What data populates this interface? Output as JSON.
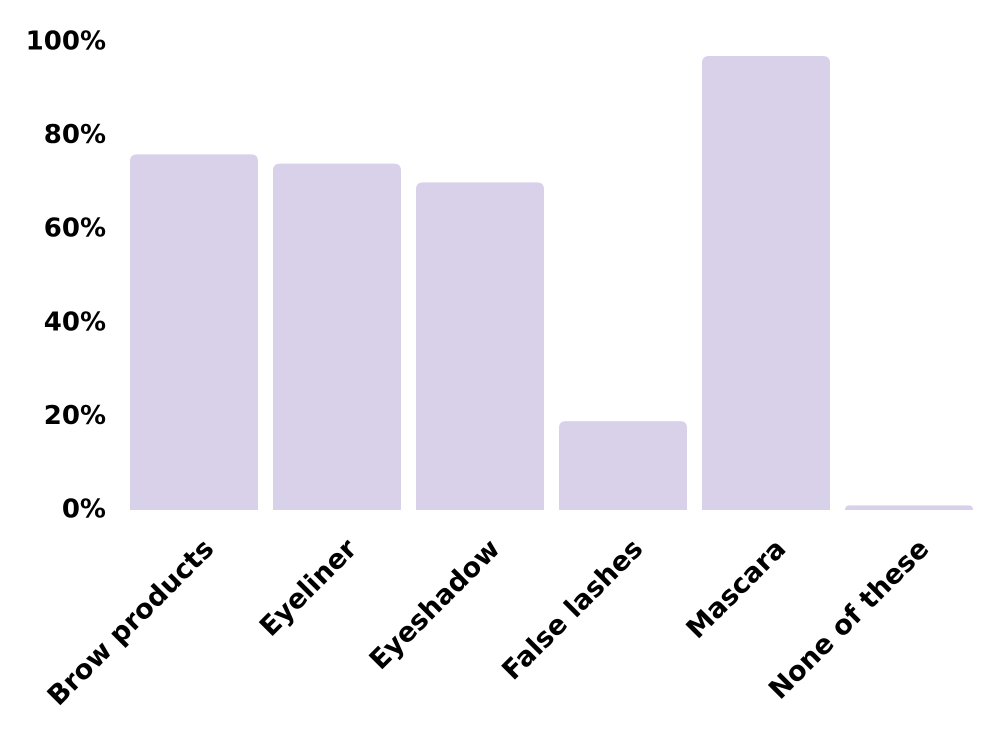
{
  "chart_data": {
    "type": "bar",
    "categories": [
      "Brow products",
      "Eyeliner",
      "Eyeshadow",
      "False lashes",
      "Mascara",
      "None of these"
    ],
    "values": [
      76,
      74,
      70,
      19,
      97,
      1
    ],
    "color": "#d9d0ea",
    "ylim": [
      0,
      100
    ],
    "yticks": [
      {
        "value": 0,
        "label": "0%"
      },
      {
        "value": 20,
        "label": "20%"
      },
      {
        "value": 40,
        "label": "40%"
      },
      {
        "value": 60,
        "label": "60%"
      },
      {
        "value": 80,
        "label": "80%"
      },
      {
        "value": 100,
        "label": "100%"
      }
    ],
    "grid": false
  }
}
